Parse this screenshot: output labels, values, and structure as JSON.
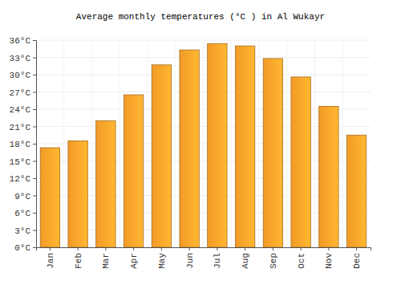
{
  "chart_data": {
    "type": "bar",
    "title": "Average monthly temperatures (°C ) in Al Wukayr",
    "categories": [
      "Jan",
      "Feb",
      "Mar",
      "Apr",
      "May",
      "Jun",
      "Jul",
      "Aug",
      "Sep",
      "Oct",
      "Nov",
      "Dec"
    ],
    "values": [
      17.3,
      18.5,
      22.0,
      26.5,
      31.7,
      34.3,
      35.4,
      35.0,
      32.8,
      29.6,
      24.5,
      19.5
    ],
    "color": "#ffa22a",
    "ylim": [
      0,
      36
    ],
    "yticks": [
      {
        "value": 0,
        "label": "0°C"
      },
      {
        "value": 3,
        "label": "3°C"
      },
      {
        "value": 6,
        "label": "6°C"
      },
      {
        "value": 9,
        "label": "9°C"
      },
      {
        "value": 12,
        "label": "12°C"
      },
      {
        "value": 15,
        "label": "15°C"
      },
      {
        "value": 18,
        "label": "18°C"
      },
      {
        "value": 21,
        "label": "21°C"
      },
      {
        "value": 24,
        "label": "24°C"
      },
      {
        "value": 27,
        "label": "27°C"
      },
      {
        "value": 30,
        "label": "30°C"
      },
      {
        "value": 33,
        "label": "33°C"
      },
      {
        "value": 36,
        "label": "36°C"
      }
    ],
    "grid": true
  }
}
